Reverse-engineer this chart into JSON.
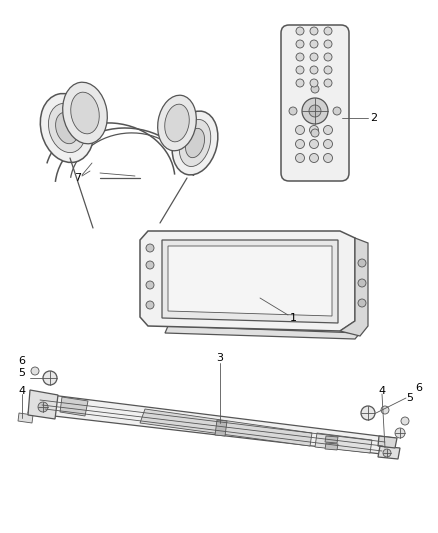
{
  "background_color": "#ffffff",
  "line_color": "#555555",
  "label_color": "#000000",
  "label_fontsize": 8,
  "fig_width": 4.38,
  "fig_height": 5.33,
  "dpi": 100
}
